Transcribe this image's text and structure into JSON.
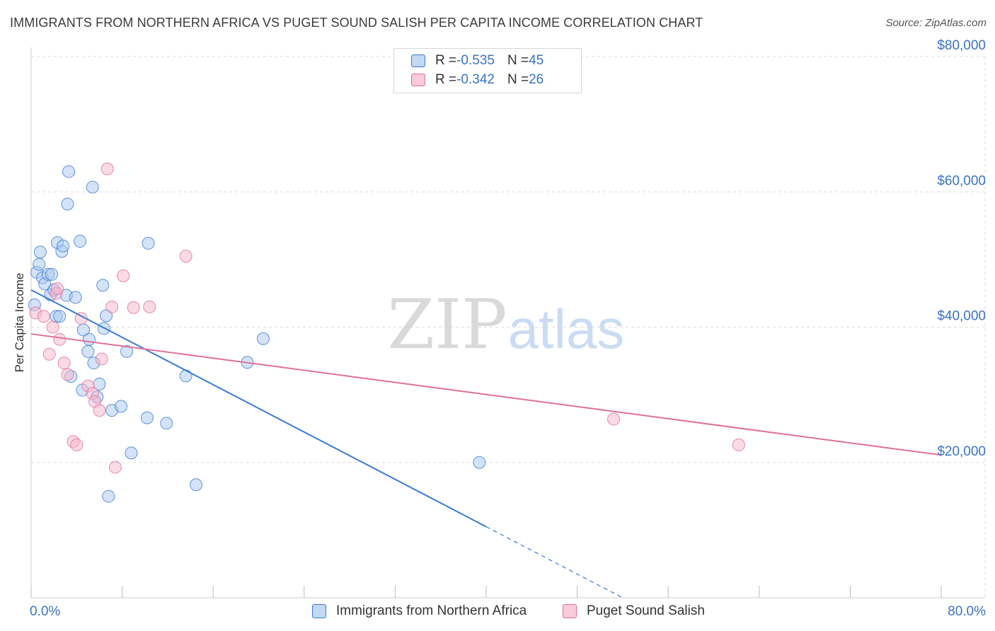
{
  "chart_data": {
    "type": "scatter",
    "title": "IMMIGRANTS FROM NORTHERN AFRICA VS PUGET SOUND SALISH PER CAPITA INCOME CORRELATION CHART",
    "source": "Source: ZipAtlas.com",
    "ylabel": "Per Capita Income",
    "xlim": [
      0,
      80
    ],
    "ylim": [
      0,
      80000
    ],
    "x_tick_labels": [
      "0.0%",
      "80.0%"
    ],
    "y_tick_labels": [
      "$20,000",
      "$40,000",
      "$60,000",
      "$80,000"
    ],
    "y_ticks": [
      20000,
      40000,
      60000,
      80000
    ],
    "watermark": {
      "zip": "ZIP",
      "atlas": "atlas"
    },
    "legend_stats": [
      {
        "r_label": "R = ",
        "r_value": "-0.535",
        "n_label": "N = ",
        "n_value": "45"
      },
      {
        "r_label": "R = ",
        "r_value": "-0.342",
        "n_label": "N = ",
        "n_value": "26"
      }
    ],
    "colors": {
      "blue": "#3a7bd5",
      "blue_fill": "#a9c8ef",
      "pink": "#e0709a",
      "pink_fill": "#f5b5ca",
      "tick_text": "#3a74c9"
    },
    "series": [
      {
        "name": "Immigrants from Northern Africa",
        "color": "#3a7bd5",
        "trend": {
          "x0": 0,
          "y0": 45500,
          "x1": 40,
          "y1": 10500,
          "dash_to_x": 52
        },
        "points": [
          [
            0.3,
            43300
          ],
          [
            0.5,
            48100
          ],
          [
            0.7,
            49300
          ],
          [
            0.8,
            51100
          ],
          [
            1.0,
            47300
          ],
          [
            1.2,
            46400
          ],
          [
            1.5,
            47800
          ],
          [
            1.7,
            44800
          ],
          [
            1.8,
            47800
          ],
          [
            2.0,
            45500
          ],
          [
            2.2,
            41600
          ],
          [
            2.3,
            52500
          ],
          [
            2.5,
            41600
          ],
          [
            2.7,
            51200
          ],
          [
            2.8,
            52000
          ],
          [
            3.1,
            44700
          ],
          [
            3.2,
            58200
          ],
          [
            3.3,
            63000
          ],
          [
            3.5,
            32700
          ],
          [
            3.9,
            44400
          ],
          [
            4.3,
            52700
          ],
          [
            4.5,
            30700
          ],
          [
            4.6,
            39600
          ],
          [
            5.0,
            36400
          ],
          [
            5.1,
            38200
          ],
          [
            5.4,
            60700
          ],
          [
            5.5,
            34700
          ],
          [
            5.8,
            29700
          ],
          [
            6.0,
            31600
          ],
          [
            6.3,
            46200
          ],
          [
            6.4,
            39800
          ],
          [
            6.6,
            41700
          ],
          [
            6.8,
            15000
          ],
          [
            7.1,
            27700
          ],
          [
            7.9,
            28300
          ],
          [
            8.4,
            36400
          ],
          [
            8.8,
            21400
          ],
          [
            10.2,
            26600
          ],
          [
            10.3,
            52400
          ],
          [
            11.9,
            25800
          ],
          [
            13.6,
            32800
          ],
          [
            14.5,
            16700
          ],
          [
            19.0,
            34800
          ],
          [
            20.4,
            38300
          ],
          [
            39.4,
            20000
          ]
        ]
      },
      {
        "name": "Puget Sound Salish",
        "color": "#e0709a",
        "trend": {
          "x0": 0,
          "y0": 39000,
          "x1": 80,
          "y1": 21100
        },
        "points": [
          [
            0.4,
            42100
          ],
          [
            1.1,
            41600
          ],
          [
            1.6,
            36000
          ],
          [
            1.9,
            40000
          ],
          [
            2.2,
            45000
          ],
          [
            2.3,
            45700
          ],
          [
            2.5,
            38200
          ],
          [
            2.9,
            34700
          ],
          [
            3.2,
            33000
          ],
          [
            3.7,
            23100
          ],
          [
            4.0,
            22600
          ],
          [
            4.4,
            41300
          ],
          [
            5.0,
            31300
          ],
          [
            5.4,
            30200
          ],
          [
            5.6,
            29000
          ],
          [
            6.0,
            27700
          ],
          [
            6.2,
            35300
          ],
          [
            6.7,
            63400
          ],
          [
            7.1,
            43000
          ],
          [
            7.4,
            19300
          ],
          [
            8.1,
            47600
          ],
          [
            9.0,
            42900
          ],
          [
            10.4,
            43000
          ],
          [
            13.6,
            50500
          ],
          [
            51.2,
            26400
          ],
          [
            62.2,
            22600
          ]
        ]
      }
    ]
  }
}
